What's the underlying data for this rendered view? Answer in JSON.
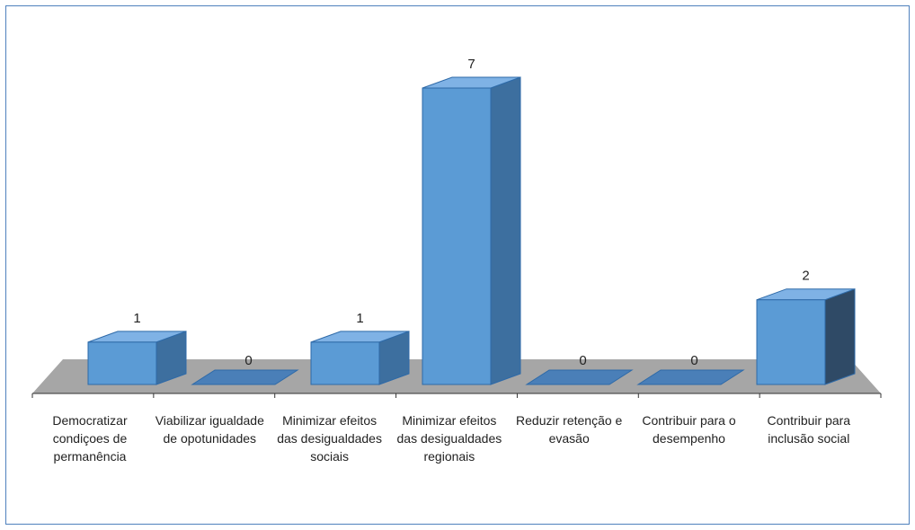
{
  "chart_data": {
    "type": "bar3d",
    "categories": [
      "Democratizar condiçoes de permanência",
      "Viabilizar igualdade de opotunidades",
      "Minimizar efeitos das desigualdades sociais",
      "Minimizar efeitos das desigualdades regionais",
      "Reduzir retenção e evasão",
      "Contribuir para o desempenho",
      "Contribuir para inclusão social"
    ],
    "values": [
      1,
      0,
      1,
      7,
      0,
      0,
      2
    ],
    "color": "#5b9bd5"
  }
}
